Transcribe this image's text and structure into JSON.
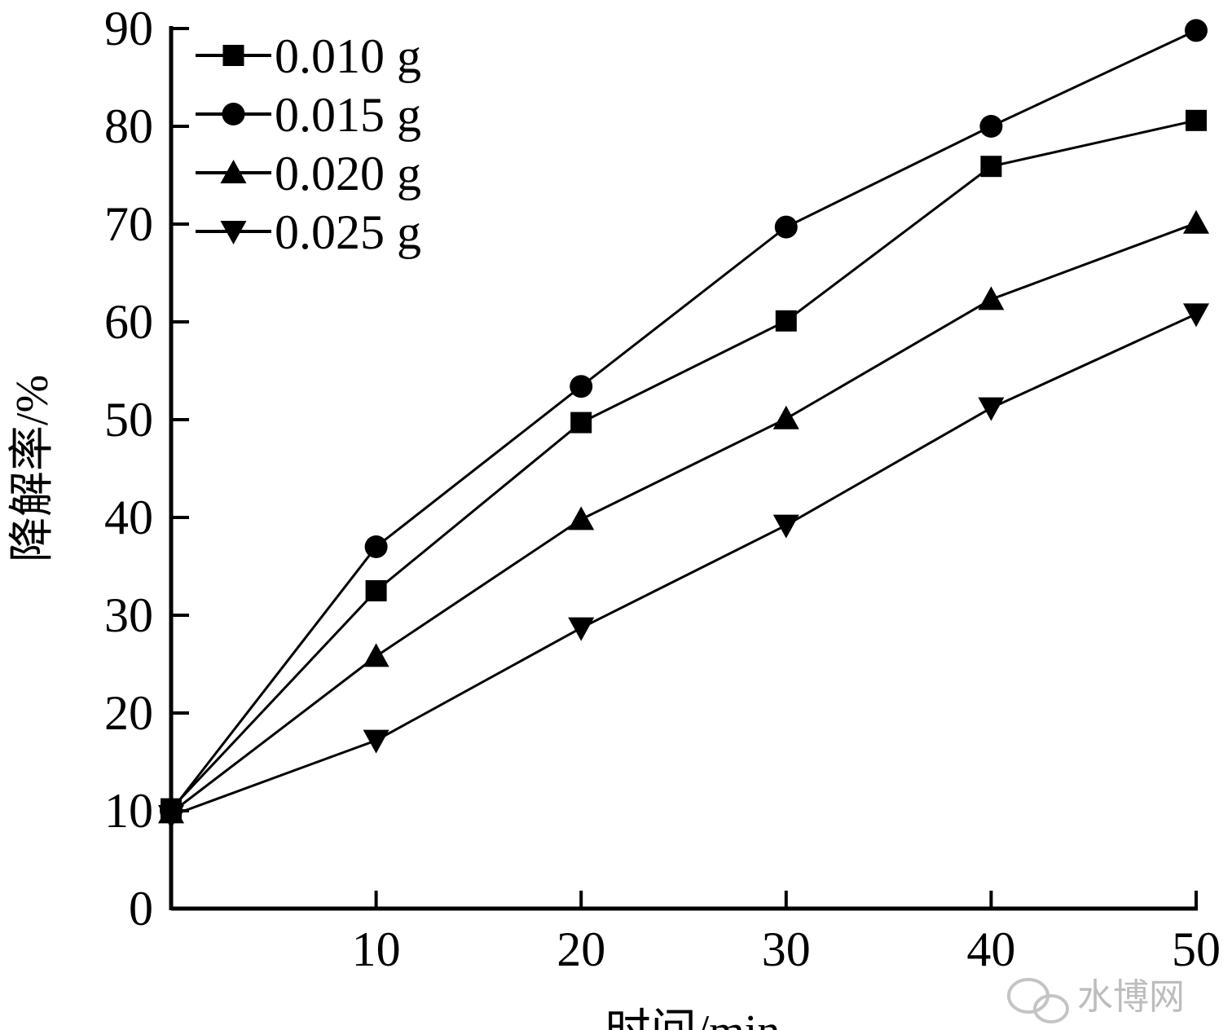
{
  "chart_data": {
    "type": "line",
    "x": [
      0,
      10,
      20,
      30,
      40,
      50
    ],
    "xlabel": "时间/min",
    "ylabel": "降解率/%",
    "xlim": [
      0,
      50
    ],
    "ylim": [
      0,
      90
    ],
    "xticks": [
      "10",
      "20",
      "30",
      "40",
      "50"
    ],
    "yticks": [
      "0",
      "10",
      "20",
      "30",
      "40",
      "50",
      "60",
      "70",
      "80",
      "90"
    ],
    "grid": false,
    "legend_position": "top-left",
    "series": [
      {
        "name": "0.010 g",
        "marker": "square",
        "values": [
          10.2,
          32.5,
          49.7,
          60.1,
          75.9,
          80.6
        ]
      },
      {
        "name": "0.015 g",
        "marker": "circle",
        "values": [
          10.0,
          37.0,
          53.4,
          69.7,
          80.0,
          89.8
        ]
      },
      {
        "name": "0.020 g",
        "marker": "triangle-up",
        "values": [
          9.8,
          25.8,
          39.8,
          50.1,
          62.3,
          70.1
        ]
      },
      {
        "name": "0.025 g",
        "marker": "triangle-down",
        "values": [
          9.5,
          17.2,
          28.7,
          39.2,
          51.2,
          60.8
        ]
      }
    ]
  },
  "watermark": {
    "text": "水博网",
    "icon": "wechat-icon"
  }
}
